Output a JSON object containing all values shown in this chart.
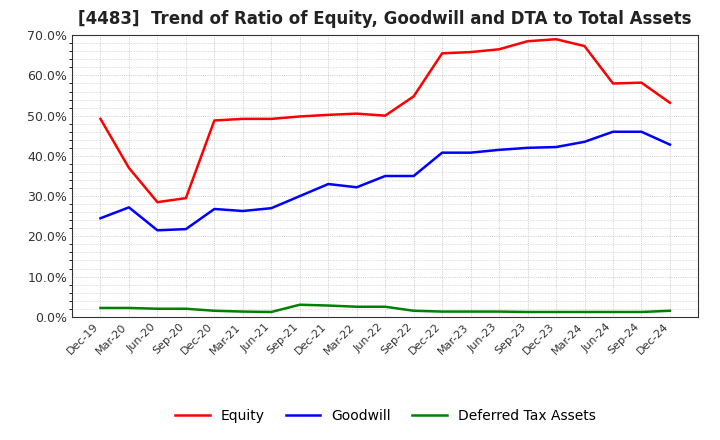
{
  "title": "[4483]  Trend of Ratio of Equity, Goodwill and DTA to Total Assets",
  "x_labels": [
    "Dec-19",
    "Mar-20",
    "Jun-20",
    "Sep-20",
    "Dec-20",
    "Mar-21",
    "Jun-21",
    "Sep-21",
    "Dec-21",
    "Mar-22",
    "Jun-22",
    "Sep-22",
    "Dec-22",
    "Mar-23",
    "Jun-23",
    "Sep-23",
    "Dec-23",
    "Mar-24",
    "Jun-24",
    "Sep-24",
    "Dec-24"
  ],
  "equity": [
    0.492,
    0.37,
    0.285,
    0.295,
    0.488,
    0.492,
    0.492,
    0.498,
    0.502,
    0.505,
    0.5,
    0.548,
    0.655,
    0.658,
    0.665,
    0.685,
    0.69,
    0.673,
    0.58,
    0.582,
    0.532
  ],
  "goodwill": [
    0.245,
    0.272,
    0.215,
    0.218,
    0.268,
    0.263,
    0.27,
    0.3,
    0.33,
    0.322,
    0.35,
    0.35,
    0.408,
    0.408,
    0.415,
    0.42,
    0.422,
    0.435,
    0.46,
    0.46,
    0.428
  ],
  "dta": [
    0.022,
    0.022,
    0.02,
    0.02,
    0.015,
    0.013,
    0.012,
    0.03,
    0.028,
    0.025,
    0.025,
    0.015,
    0.013,
    0.013,
    0.013,
    0.012,
    0.012,
    0.012,
    0.012,
    0.012,
    0.015
  ],
  "equity_color": "#ff0000",
  "goodwill_color": "#0000ff",
  "dta_color": "#008000",
  "ylim": [
    0.0,
    0.7
  ],
  "yticks": [
    0.0,
    0.1,
    0.2,
    0.3,
    0.4,
    0.5,
    0.6,
    0.7
  ],
  "background_color": "#ffffff",
  "plot_bg_color": "#ffffff",
  "grid_color": "#aaaaaa",
  "title_fontsize": 12,
  "legend_labels": [
    "Equity",
    "Goodwill",
    "Deferred Tax Assets"
  ]
}
